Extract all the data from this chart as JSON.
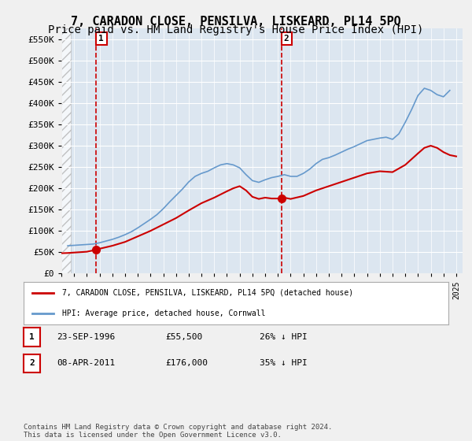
{
  "title": "7, CARADON CLOSE, PENSILVA, LISKEARD, PL14 5PQ",
  "subtitle": "Price paid vs. HM Land Registry's House Price Index (HPI)",
  "title_fontsize": 11,
  "subtitle_fontsize": 10,
  "bg_color": "#dce6f0",
  "plot_bg_color": "#dce6f0",
  "grid_color": "#ffffff",
  "ylabel_values": [
    0,
    50000,
    100000,
    150000,
    200000,
    250000,
    300000,
    350000,
    400000,
    450000,
    500000,
    550000
  ],
  "ylim": [
    0,
    575000
  ],
  "xlim_start": 1994.0,
  "xlim_end": 2025.5,
  "purchase_dates": [
    1996.73,
    2011.27
  ],
  "purchase_prices": [
    55500,
    176000
  ],
  "purchase_labels": [
    "1",
    "2"
  ],
  "hpi_line_color": "#6699cc",
  "price_line_color": "#cc0000",
  "annotation_box_color": "#cc0000",
  "legend_entry1": "7, CARADON CLOSE, PENSILVA, LISKEARD, PL14 5PQ (detached house)",
  "legend_entry2": "HPI: Average price, detached house, Cornwall",
  "table_rows": [
    {
      "label": "1",
      "date": "23-SEP-1996",
      "price": "£55,500",
      "note": "26% ↓ HPI"
    },
    {
      "label": "2",
      "date": "08-APR-2011",
      "price": "£176,000",
      "note": "35% ↓ HPI"
    }
  ],
  "footnote": "Contains HM Land Registry data © Crown copyright and database right 2024.\nThis data is licensed under the Open Government Licence v3.0.",
  "hpi_years": [
    1994.5,
    1995.0,
    1995.5,
    1996.0,
    1996.5,
    1997.0,
    1997.5,
    1998.0,
    1998.5,
    1999.0,
    1999.5,
    2000.0,
    2000.5,
    2001.0,
    2001.5,
    2002.0,
    2002.5,
    2003.0,
    2003.5,
    2004.0,
    2004.5,
    2005.0,
    2005.5,
    2006.0,
    2006.5,
    2007.0,
    2007.5,
    2008.0,
    2008.5,
    2009.0,
    2009.5,
    2010.0,
    2010.5,
    2011.0,
    2011.5,
    2012.0,
    2012.5,
    2013.0,
    2013.5,
    2014.0,
    2014.5,
    2015.0,
    2015.5,
    2016.0,
    2016.5,
    2017.0,
    2017.5,
    2018.0,
    2018.5,
    2019.0,
    2019.5,
    2020.0,
    2020.5,
    2021.0,
    2021.5,
    2022.0,
    2022.5,
    2023.0,
    2023.5,
    2024.0,
    2024.5
  ],
  "hpi_values": [
    65000,
    66000,
    67000,
    68000,
    69000,
    72000,
    76000,
    80000,
    85000,
    91000,
    98000,
    107000,
    117000,
    127000,
    138000,
    152000,
    168000,
    183000,
    198000,
    215000,
    228000,
    235000,
    240000,
    248000,
    255000,
    258000,
    255000,
    248000,
    232000,
    218000,
    214000,
    220000,
    225000,
    228000,
    232000,
    228000,
    228000,
    235000,
    245000,
    258000,
    268000,
    272000,
    278000,
    285000,
    292000,
    298000,
    305000,
    312000,
    315000,
    318000,
    320000,
    315000,
    328000,
    355000,
    385000,
    418000,
    435000,
    430000,
    420000,
    415000,
    430000
  ],
  "price_years": [
    1994.0,
    1994.5,
    1995.0,
    1995.5,
    1996.0,
    1996.73,
    1997.0,
    1998.0,
    1999.0,
    2000.0,
    2001.0,
    2002.0,
    2003.0,
    2004.0,
    2005.0,
    2006.0,
    2007.0,
    2007.5,
    2008.0,
    2008.5,
    2009.0,
    2009.5,
    2010.0,
    2010.5,
    2011.27,
    2011.5,
    2012.0,
    2013.0,
    2014.0,
    2015.0,
    2016.0,
    2017.0,
    2018.0,
    2019.0,
    2020.0,
    2021.0,
    2022.0,
    2022.5,
    2023.0,
    2023.5,
    2024.0,
    2024.5,
    2025.0
  ],
  "price_values": [
    47500,
    48000,
    49000,
    50000,
    51000,
    55500,
    58000,
    65000,
    74000,
    87000,
    100000,
    115000,
    130000,
    148000,
    165000,
    178000,
    193000,
    200000,
    205000,
    195000,
    180000,
    175000,
    178000,
    176000,
    176000,
    178000,
    175000,
    182000,
    195000,
    205000,
    215000,
    225000,
    235000,
    240000,
    238000,
    255000,
    282000,
    295000,
    300000,
    295000,
    285000,
    278000,
    275000
  ]
}
